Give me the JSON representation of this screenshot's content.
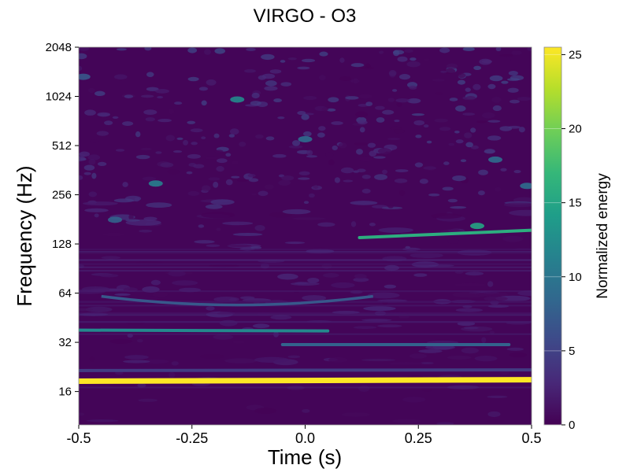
{
  "chart_data": {
    "type": "heatmap",
    "title": "VIRGO - O3",
    "xlabel": "Time (s)",
    "ylabel": "Frequency (Hz)",
    "xlim": [
      -0.5,
      0.5
    ],
    "ylim": [
      10,
      2048
    ],
    "yscale": "log2",
    "grid": false,
    "colormap": "viridis",
    "xticks": [
      {
        "value": -0.5,
        "label": "-0.5"
      },
      {
        "value": -0.25,
        "label": "-0.25"
      },
      {
        "value": 0.0,
        "label": "0.0"
      },
      {
        "value": 0.25,
        "label": "0.25"
      },
      {
        "value": 0.5,
        "label": "0.5"
      }
    ],
    "yticks": [
      {
        "value": 16,
        "label": "16"
      },
      {
        "value": 32,
        "label": "32"
      },
      {
        "value": 64,
        "label": "64"
      },
      {
        "value": 128,
        "label": "128"
      },
      {
        "value": 256,
        "label": "256"
      },
      {
        "value": 512,
        "label": "512"
      },
      {
        "value": 1024,
        "label": "1024"
      },
      {
        "value": 2048,
        "label": "2048"
      }
    ],
    "colorbar": {
      "label": "Normalized energy",
      "range": [
        0,
        25.5
      ],
      "ticks": [
        {
          "value": 0,
          "label": "0"
        },
        {
          "value": 5,
          "label": "5"
        },
        {
          "value": 10,
          "label": "10"
        },
        {
          "value": 15,
          "label": "15"
        },
        {
          "value": 20,
          "label": "20"
        },
        {
          "value": 25,
          "label": "25"
        }
      ]
    },
    "features": [
      {
        "type": "line",
        "name": "strong line",
        "freq": 18.5,
        "t_start": -0.5,
        "t_end": 0.5,
        "energy": 25.5,
        "freq_slope": 0.4
      },
      {
        "type": "line",
        "name": "line",
        "freq": 21.5,
        "t_start": -0.5,
        "t_end": 0.5,
        "energy": 4.5,
        "freq_slope": 0.2
      },
      {
        "type": "line",
        "name": "line",
        "freq": 38,
        "t_start": -0.5,
        "t_end": 0.05,
        "energy": 12,
        "freq_slope": -0.8
      },
      {
        "type": "line",
        "name": "line",
        "freq": 31,
        "t_start": -0.05,
        "t_end": 0.45,
        "energy": 8,
        "freq_slope": 0
      },
      {
        "type": "arc",
        "name": "arc",
        "freq": 56,
        "t_start": -0.45,
        "t_end": 0.15,
        "energy": 7
      },
      {
        "type": "line",
        "name": "rising line",
        "freq": 140,
        "t_start": 0.12,
        "t_end": 0.5,
        "energy": 16,
        "freq_slope": 40
      }
    ],
    "blobs": [
      {
        "t": -0.33,
        "f": 300,
        "energy": 11
      },
      {
        "t": -0.15,
        "f": 980,
        "energy": 12
      },
      {
        "t": -0.42,
        "f": 180,
        "energy": 8
      },
      {
        "t": 0.0,
        "f": 560,
        "energy": 9
      },
      {
        "t": 0.38,
        "f": 165,
        "energy": 15
      },
      {
        "t": 0.42,
        "f": 420,
        "energy": 9
      },
      {
        "t": 0.49,
        "f": 290,
        "energy": 9
      },
      {
        "t": -0.49,
        "f": 1350,
        "energy": 7
      }
    ],
    "background_energy": [
      0,
      3
    ]
  }
}
